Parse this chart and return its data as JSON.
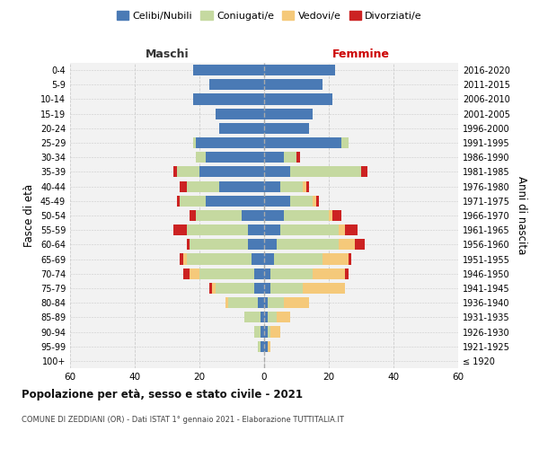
{
  "age_groups": [
    "100+",
    "95-99",
    "90-94",
    "85-89",
    "80-84",
    "75-79",
    "70-74",
    "65-69",
    "60-64",
    "55-59",
    "50-54",
    "45-49",
    "40-44",
    "35-39",
    "30-34",
    "25-29",
    "20-24",
    "15-19",
    "10-14",
    "5-9",
    "0-4"
  ],
  "birth_years": [
    "≤ 1920",
    "1921-1925",
    "1926-1930",
    "1931-1935",
    "1936-1940",
    "1941-1945",
    "1946-1950",
    "1951-1955",
    "1956-1960",
    "1961-1965",
    "1966-1970",
    "1971-1975",
    "1976-1980",
    "1981-1985",
    "1986-1990",
    "1991-1995",
    "1996-2000",
    "2001-2005",
    "2006-2010",
    "2011-2015",
    "2016-2020"
  ],
  "maschi": {
    "celibi": [
      0,
      1,
      1,
      1,
      2,
      3,
      3,
      4,
      5,
      5,
      7,
      18,
      14,
      20,
      18,
      21,
      14,
      15,
      22,
      17,
      22
    ],
    "coniugati": [
      0,
      1,
      2,
      5,
      9,
      12,
      17,
      20,
      18,
      19,
      14,
      8,
      10,
      7,
      3,
      1,
      0,
      0,
      0,
      0,
      0
    ],
    "vedovi": [
      0,
      0,
      0,
      0,
      1,
      1,
      3,
      1,
      0,
      0,
      0,
      0,
      0,
      0,
      0,
      0,
      0,
      0,
      0,
      0,
      0
    ],
    "divorziati": [
      0,
      0,
      0,
      0,
      0,
      1,
      2,
      1,
      1,
      4,
      2,
      1,
      2,
      1,
      0,
      0,
      0,
      0,
      0,
      0,
      0
    ]
  },
  "femmine": {
    "nubili": [
      0,
      1,
      1,
      1,
      1,
      2,
      2,
      3,
      4,
      5,
      6,
      8,
      5,
      8,
      6,
      24,
      14,
      15,
      21,
      18,
      22
    ],
    "coniugate": [
      0,
      0,
      1,
      3,
      5,
      10,
      13,
      15,
      19,
      18,
      14,
      7,
      7,
      22,
      4,
      2,
      0,
      0,
      0,
      0,
      0
    ],
    "vedove": [
      0,
      1,
      3,
      4,
      8,
      13,
      10,
      8,
      5,
      2,
      1,
      1,
      1,
      0,
      0,
      0,
      0,
      0,
      0,
      0,
      0
    ],
    "divorziate": [
      0,
      0,
      0,
      0,
      0,
      0,
      1,
      1,
      3,
      4,
      3,
      1,
      1,
      2,
      1,
      0,
      0,
      0,
      0,
      0,
      0
    ]
  },
  "colors": {
    "celibi": "#4a7ab5",
    "coniugati": "#c5d9a0",
    "vedovi": "#f5c97a",
    "divorziati": "#cc2222"
  },
  "xlim": 60,
  "title": "Popolazione per età, sesso e stato civile - 2021",
  "subtitle": "COMUNE DI ZEDDIANI (OR) - Dati ISTAT 1° gennaio 2021 - Elaborazione TUTTITALIA.IT",
  "ylabel_left": "Fasce di età",
  "ylabel_right": "Anni di nascita",
  "legend_labels": [
    "Celibi/Nubili",
    "Coniugati/e",
    "Vedovi/e",
    "Divorziati/e"
  ],
  "bg_color": "#f2f2f2",
  "grid_color": "#cccccc"
}
